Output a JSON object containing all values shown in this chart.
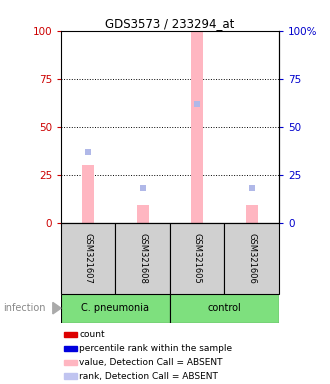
{
  "title": "GDS3573 / 233294_at",
  "samples": [
    "GSM321607",
    "GSM321608",
    "GSM321605",
    "GSM321606"
  ],
  "group_spans": [
    {
      "label": "C. pneumonia",
      "start": 0,
      "end": 1,
      "color": "#7EE07E"
    },
    {
      "label": "control",
      "start": 2,
      "end": 3,
      "color": "#7EE07E"
    }
  ],
  "sample_bar_color": "#d0d0d0",
  "infection_label": "infection",
  "y_ticks": [
    0,
    25,
    50,
    75,
    100
  ],
  "bar_values_pink": [
    30,
    9,
    100,
    9
  ],
  "dot_values_blue": [
    37,
    18,
    62,
    18
  ],
  "bar_color_absent": "#ffb6c1",
  "dot_color_absent": "#b0b8e8",
  "left_tick_color": "#cc0000",
  "right_tick_color": "#0000cc",
  "legend_items": [
    {
      "label": "count",
      "color": "#dd0000"
    },
    {
      "label": "percentile rank within the sample",
      "color": "#0000dd"
    },
    {
      "label": "value, Detection Call = ABSENT",
      "color": "#ffb6c1"
    },
    {
      "label": "rank, Detection Call = ABSENT",
      "color": "#c0c4f0"
    }
  ],
  "grid_lines": [
    25,
    50,
    75
  ],
  "right_tick_labels": [
    "0",
    "25",
    "50",
    "75",
    "100%"
  ]
}
